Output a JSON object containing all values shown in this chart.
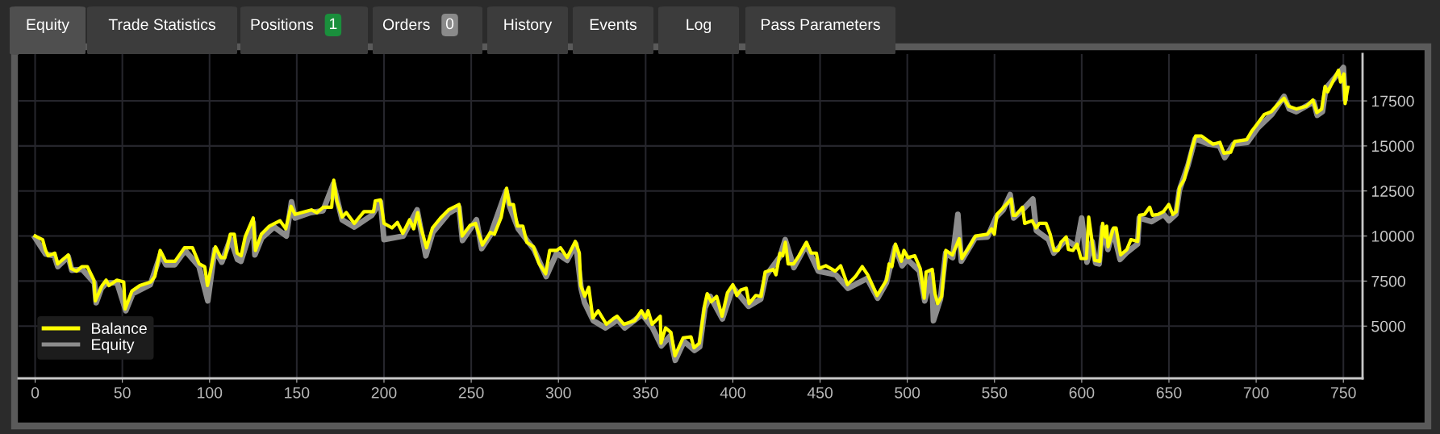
{
  "chart_data": {
    "type": "line",
    "annotations": [
      "Equity",
      "Trade Statistics",
      "Positions",
      "1",
      "Orders",
      "0",
      "History",
      "Events",
      "Log",
      "Pass Parameters"
    ],
    "xlim": [
      -9.5,
      761
    ],
    "xticks": [
      0,
      50,
      100,
      150,
      200,
      250,
      300,
      350,
      400,
      450,
      500,
      550,
      600,
      650,
      700,
      750
    ],
    "ylim": [
      2100,
      20100
    ],
    "yticks": [
      5000,
      7500,
      10000,
      12500,
      15000,
      17500
    ],
    "grid": true,
    "legend": "bottom left",
    "line_style": "solid",
    "marker": "none",
    "series": [
      {
        "name": "Equity",
        "color": "#8c8c8c",
        "x": [
          0,
          6,
          11,
          13,
          19,
          21,
          27,
          34,
          35,
          38,
          41,
          47,
          52,
          56,
          66,
          72,
          75,
          80,
          86,
          94,
          99,
          103,
          107,
          112,
          116,
          118,
          125,
          126,
          130,
          137,
          144,
          147,
          149,
          158,
          165,
          171,
          176,
          183,
          193,
          198,
          200,
          211,
          219,
          224,
          228,
          237,
          243,
          245,
          253,
          256,
          261,
          270,
          272,
          277,
          286,
          293,
          299,
          305,
          310,
          313,
          315,
          320,
          327,
          334,
          338,
          348,
          354,
          359,
          364,
          367,
          372,
          378,
          381,
          384,
          387,
          394,
          400,
          409,
          416,
          419,
          427,
          430,
          435,
          442,
          449,
          459,
          466,
          477,
          483,
          488,
          493,
          497,
          500,
          507,
          510,
          514,
          515,
          519,
          522,
          526,
          529,
          531,
          539,
          546,
          551,
          555,
          559,
          561,
          566,
          572,
          574,
          581,
          584,
          591,
          597,
          600,
          603,
          606,
          608,
          610,
          612,
          615,
          618,
          622,
          626,
          632,
          633,
          640,
          647,
          650,
          654,
          656,
          661,
          665,
          673,
          679,
          682,
          687,
          695,
          701,
          709,
          716,
          719,
          723,
          733,
          735,
          738,
          740,
          747,
          750,
          751
        ],
        "values": [
          9900,
          9000,
          8900,
          8300,
          8850,
          8100,
          8150,
          7400,
          6300,
          7100,
          7400,
          7400,
          5850,
          6800,
          7300,
          9000,
          8400,
          8400,
          9200,
          8300,
          6400,
          9250,
          8550,
          9850,
          8700,
          8600,
          10750,
          8950,
          9900,
          10500,
          10000,
          11900,
          11000,
          11300,
          11400,
          12900,
          10900,
          10500,
          11150,
          11900,
          9800,
          10000,
          11450,
          8900,
          10200,
          11250,
          11600,
          9750,
          10900,
          9300,
          10050,
          12500,
          11650,
          10400,
          9250,
          7750,
          9050,
          8650,
          9550,
          7100,
          6300,
          5300,
          4900,
          5350,
          4900,
          5650,
          4900,
          3900,
          4450,
          3100,
          4150,
          3650,
          3850,
          6000,
          6650,
          5400,
          7150,
          6100,
          6500,
          7800,
          8850,
          9800,
          8250,
          9500,
          8050,
          7850,
          7100,
          7650,
          6550,
          7400,
          9400,
          8350,
          8700,
          8050,
          6400,
          7950,
          5300,
          6500,
          9050,
          8800,
          11200,
          8600,
          9900,
          9950,
          11050,
          11450,
          12300,
          11000,
          11450,
          12050,
          10300,
          9800,
          9050,
          9800,
          9400,
          11000,
          8550,
          9700,
          8500,
          8450,
          10500,
          9250,
          10300,
          8700,
          9100,
          9550,
          11000,
          10800,
          11200,
          10850,
          11200,
          12550,
          13950,
          15400,
          15100,
          15000,
          14350,
          15100,
          15200,
          16000,
          16750,
          17750,
          17050,
          16900,
          17450,
          16700,
          16900,
          18200,
          19000,
          19350,
          17650
        ]
      },
      {
        "name": "Balance",
        "color": "#ffff00",
        "x": [
          0,
          4.3,
          6,
          7.5,
          11.3,
          12.9,
          19,
          20.6,
          23.7,
          26.8,
          29.9,
          33.7,
          34.5,
          38.4,
          40.7,
          42.3,
          46.9,
          50.8,
          51.6,
          55.5,
          60,
          66.3,
          68.6,
          71.7,
          74.8,
          80.2,
          85.6,
          90.2,
          94.1,
          97.2,
          98.8,
          103.4,
          106.5,
          108.8,
          111.9,
          114.2,
          115.8,
          118.1,
          120.4,
          125,
          126.3,
          129.7,
          134.3,
          137.4,
          140.4,
          143.7,
          146.7,
          149,
          154.5,
          158.4,
          161.5,
          165.3,
          170,
          171.2,
          173,
          176,
          178.4,
          183,
          188.5,
          194,
          195,
          198,
          200,
          204.6,
          207.7,
          210.8,
          214.7,
          217,
          219.3,
          220.9,
          224.4,
          227.8,
          232.4,
          237,
          243,
          244.8,
          249.4,
          252.5,
          256.4,
          261,
          263.3,
          267.2,
          270.3,
          271.8,
          274.2,
          276.5,
          279.6,
          281.9,
          285.7,
          288.8,
          292.7,
          295,
          298.9,
          301.2,
          305,
          309.7,
          312,
          312.8,
          315.1,
          317.4,
          319.7,
          322.8,
          327.5,
          331.3,
          333.6,
          337.5,
          343.7,
          347.6,
          349.9,
          351.4,
          353.7,
          358.4,
          358.8,
          361.4,
          364.5,
          366.8,
          371.5,
          376,
          377.7,
          380.8,
          383.9,
          385.3,
          387.6,
          390.7,
          393.8,
          396.9,
          400,
          402.3,
          404.6,
          407.7,
          409.3,
          413.1,
          416.2,
          418.5,
          423.2,
          424.7,
          427,
          428.6,
          430.1,
          431.7,
          434.8,
          437.9,
          442.2,
          444.8,
          447.9,
          449.4,
          453.3,
          458.7,
          461.8,
          465.7,
          470.3,
          474.2,
          477.3,
          482.7,
          488.1,
          489.6,
          491.2,
          493.2,
          496.6,
          498.1,
          500.4,
          504.3,
          507.4,
          509.7,
          510.8,
          514.3,
          515.9,
          517.4,
          519.7,
          522.1,
          525.9,
          529.8,
          531.3,
          535.2,
          539.1,
          546,
          548.3,
          549.9,
          551.4,
          555.3,
          559.6,
          560.7,
          562.2,
          566.1,
          567.3,
          571.5,
          573.8,
          575.7,
          579.6,
          581.9,
          584.2,
          586.5,
          588.1,
          591.1,
          592.4,
          595,
          597.3,
          599.6,
          602.7,
          604,
          605.8,
          607.4,
          610.4,
          612,
          613.5,
          614.3,
          615.1,
          618.2,
          619.7,
          622.3,
          625.9,
          628.2,
          632.1,
          633.2,
          636,
          639,
          640.6,
          643.7,
          646.8,
          649.9,
          652.2,
          654.2,
          656.1,
          658.8,
          661.4,
          663,
          665.3,
          668.7,
          673,
          675.3,
          679.2,
          681.5,
          685.4,
          687.7,
          694.6,
          697.7,
          700.1,
          704.7,
          708.6,
          712.4,
          716,
          718.6,
          723.2,
          728.7,
          732.5,
          734.8,
          737.6,
          739.5,
          741,
          747.2,
          748.4,
          750.3,
          751,
          752.6
        ],
        "values": [
          10000,
          9800,
          9200,
          8900,
          9050,
          8450,
          8950,
          8200,
          8050,
          8300,
          8300,
          7550,
          6400,
          7250,
          7550,
          7250,
          7550,
          7450,
          5950,
          6950,
          7250,
          7450,
          7750,
          9200,
          8600,
          8600,
          9350,
          9350,
          8450,
          8300,
          7250,
          9400,
          8800,
          8800,
          10100,
          10100,
          9050,
          8900,
          9950,
          11000,
          9200,
          10100,
          10550,
          10700,
          10850,
          10400,
          11650,
          11200,
          11350,
          11450,
          11300,
          11600,
          11600,
          13100,
          11950,
          11050,
          11300,
          10700,
          11350,
          11350,
          11950,
          12000,
          10700,
          10450,
          10750,
          10150,
          10900,
          10400,
          11300,
          10550,
          9350,
          10450,
          11000,
          11450,
          11750,
          10000,
          10600,
          10700,
          9500,
          10200,
          10100,
          11050,
          12650,
          11750,
          11750,
          10550,
          10550,
          9650,
          9400,
          8500,
          7900,
          9200,
          9200,
          9350,
          8800,
          9700,
          9050,
          7250,
          6650,
          7150,
          5450,
          5850,
          5100,
          5400,
          5550,
          5100,
          5300,
          5850,
          5450,
          5850,
          5100,
          5550,
          4050,
          4900,
          4650,
          3350,
          4350,
          4400,
          3800,
          4050,
          6200,
          6800,
          6350,
          6650,
          5550,
          6850,
          7300,
          6700,
          7000,
          7100,
          6250,
          6700,
          6650,
          8000,
          8150,
          7850,
          9050,
          8900,
          9650,
          8450,
          8450,
          8900,
          9650,
          9050,
          9050,
          8200,
          8350,
          8050,
          8350,
          7300,
          7750,
          8300,
          7850,
          6700,
          7550,
          8450,
          8300,
          9550,
          8600,
          9200,
          8800,
          8900,
          8200,
          6550,
          8000,
          8150,
          6800,
          6250,
          6650,
          9200,
          8950,
          9850,
          8750,
          9350,
          10000,
          10100,
          10400,
          10100,
          11200,
          11600,
          12050,
          11150,
          11150,
          11600,
          10700,
          10850,
          10450,
          10700,
          10700,
          10100,
          9200,
          9200,
          9650,
          9950,
          9250,
          9200,
          9550,
          8750,
          8750,
          11050,
          9800,
          8650,
          8600,
          10700,
          9950,
          10550,
          9400,
          10450,
          10450,
          8950,
          9250,
          9800,
          9700,
          11150,
          11200,
          11600,
          11150,
          11200,
          11350,
          11750,
          11200,
          11350,
          12700,
          13150,
          14150,
          14800,
          15550,
          15550,
          15250,
          15100,
          15200,
          14600,
          14650,
          15250,
          15350,
          15850,
          16150,
          16750,
          16900,
          17300,
          17650,
          17200,
          17050,
          17200,
          17550,
          16850,
          17050,
          18300,
          18000,
          19200,
          18550,
          19000,
          17350,
          18250
        ]
      }
    ]
  }
}
